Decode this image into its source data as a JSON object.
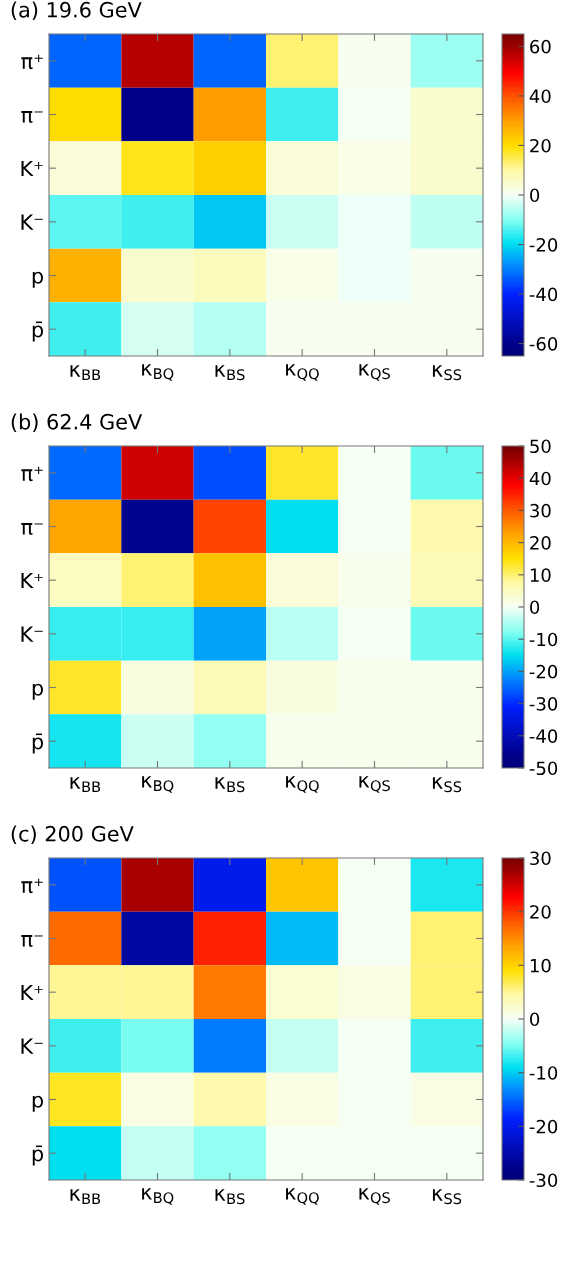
{
  "chart_data": [
    {
      "type": "heatmap",
      "title": "(a) 19.6 GeV",
      "categories": [
        "κ$_{BB}$",
        "κ$_{BQ}$",
        "κ$_{BS}$",
        "κ$_{QQ}$",
        "κ$_{QS}$",
        "κ$_{SS}$"
      ],
      "y_categories": [
        "π⁺",
        "π⁻",
        "K⁺",
        "K⁻",
        "p",
        "p̄"
      ],
      "cells": [
        [
          -33,
          57,
          -33,
          13,
          1,
          -8
        ],
        [
          20,
          -60,
          30,
          -15,
          0,
          5
        ],
        [
          4,
          18,
          22,
          4,
          2,
          5
        ],
        [
          -13,
          -15,
          -22,
          -4,
          -1,
          -5
        ],
        [
          27,
          5,
          7,
          2,
          -1,
          1
        ],
        [
          -15,
          -3,
          -6,
          1,
          1,
          1
        ]
      ],
      "clim": [
        -65,
        65
      ],
      "cticks": [
        -60,
        -40,
        -20,
        0,
        20,
        40,
        60
      ]
    },
    {
      "type": "heatmap",
      "title": "(b) 62.4 GeV",
      "categories": [
        "κ$_{BB}$",
        "κ$_{BQ}$",
        "κ$_{BS}$",
        "κ$_{QQ}$",
        "κ$_{QS}$",
        "κ$_{SS}$"
      ],
      "y_categories": [
        "π⁺",
        "π⁻",
        "K⁺",
        "K⁻",
        "p",
        "p̄"
      ],
      "cells": [
        [
          -25,
          42,
          -27,
          13,
          0,
          -9
        ],
        [
          22,
          -45,
          32,
          -15,
          0,
          7
        ],
        [
          5,
          10,
          19,
          3,
          1,
          6
        ],
        [
          -12,
          -12,
          -20,
          -4,
          0,
          -9
        ],
        [
          13,
          2,
          6,
          2,
          1,
          1
        ],
        [
          -14,
          -3,
          -7,
          1,
          1,
          1
        ]
      ],
      "clim": [
        -50,
        50
      ],
      "cticks": [
        -50,
        -40,
        -30,
        -20,
        -10,
        0,
        10,
        20,
        30,
        40,
        50
      ]
    },
    {
      "type": "heatmap",
      "title": "(c) 200 GeV",
      "categories": [
        "κ$_{BB}$",
        "κ$_{BQ}$",
        "κ$_{BS}$",
        "κ$_{QQ}$",
        "κ$_{QS}$",
        "κ$_{SS}$"
      ],
      "y_categories": [
        "π⁺",
        "π⁻",
        "K⁺",
        "K⁻",
        "p",
        "p̄"
      ],
      "cells": [
        [
          -16,
          27,
          -20,
          11,
          0,
          -8
        ],
        [
          17,
          -26,
          21,
          -11,
          0,
          6
        ],
        [
          5,
          5,
          16,
          2,
          1,
          6
        ],
        [
          -7,
          -5,
          -14,
          -2,
          0,
          -7
        ],
        [
          8,
          1,
          4,
          1,
          0,
          1
        ],
        [
          -9,
          -2,
          -4,
          0,
          0,
          0
        ]
      ],
      "clim": [
        -30,
        30
      ],
      "cticks": [
        -30,
        -20,
        -10,
        0,
        10,
        20,
        30
      ]
    }
  ]
}
